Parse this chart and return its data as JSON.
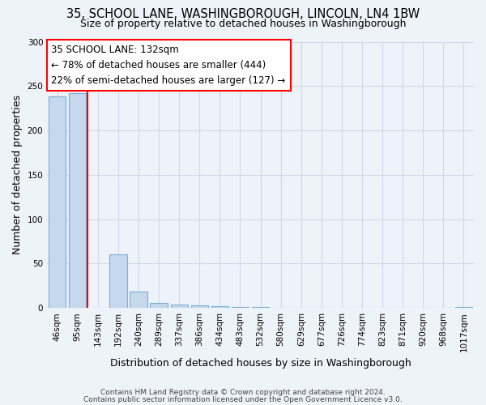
{
  "title": "35, SCHOOL LANE, WASHINGBOROUGH, LINCOLN, LN4 1BW",
  "subtitle": "Size of property relative to detached houses in Washingborough",
  "xlabel": "Distribution of detached houses by size in Washingborough",
  "ylabel": "Number of detached properties",
  "categories": [
    "46sqm",
    "95sqm",
    "143sqm",
    "192sqm",
    "240sqm",
    "289sqm",
    "337sqm",
    "386sqm",
    "434sqm",
    "483sqm",
    "532sqm",
    "580sqm",
    "629sqm",
    "677sqm",
    "726sqm",
    "774sqm",
    "823sqm",
    "871sqm",
    "920sqm",
    "968sqm",
    "1017sqm"
  ],
  "values": [
    238,
    242,
    0,
    60,
    18,
    6,
    4,
    3,
    2,
    1,
    1,
    0,
    0,
    0,
    0,
    0,
    0,
    0,
    0,
    0,
    1
  ],
  "bar_color": "#c5d8ee",
  "bar_edge_color": "#7aafd4",
  "red_line_x": 1.5,
  "property_size": "132sqm",
  "pct_smaller": 78,
  "count_smaller": 444,
  "pct_larger": 22,
  "count_larger": 127,
  "ylim": [
    0,
    300
  ],
  "yticks": [
    0,
    50,
    100,
    150,
    200,
    250,
    300
  ],
  "footnote1": "Contains HM Land Registry data © Crown copyright and database right 2024.",
  "footnote2": "Contains public sector information licensed under the Open Government Licence v3.0.",
  "bg_color": "#eef2f9",
  "grid_color": "#d0d8e8",
  "title_fontsize": 10.5,
  "subtitle_fontsize": 9,
  "axis_label_fontsize": 9,
  "tick_fontsize": 7.5,
  "annotation_fontsize": 8.5,
  "footnote_fontsize": 6.5
}
